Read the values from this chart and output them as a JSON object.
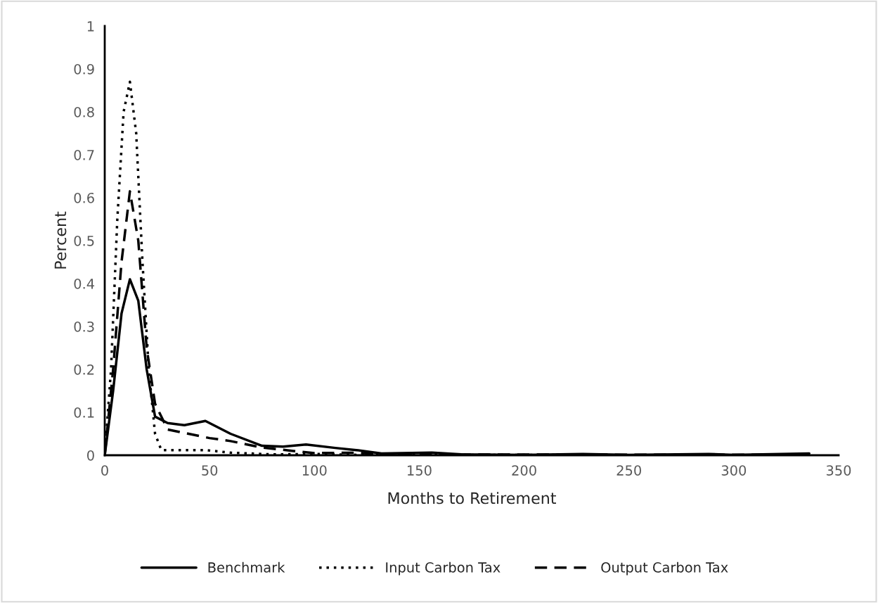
{
  "chart_data": {
    "type": "line",
    "xlabel": "Months to Retirement",
    "ylabel": "Percent",
    "xlim": [
      0,
      350
    ],
    "xticks": [
      0,
      50,
      100,
      150,
      200,
      250,
      300,
      350
    ],
    "ylim": [
      0,
      1
    ],
    "yticks": [
      0,
      0.1,
      0.2,
      0.3,
      0.4,
      0.5,
      0.6,
      0.7,
      0.8,
      0.9,
      1
    ],
    "grid": false,
    "legend": "bottom",
    "marker": "none",
    "series": [
      {
        "name": "Benchmark",
        "color": "#000000",
        "line_style": "solid",
        "x": [
          0,
          4,
          8,
          12,
          16,
          20,
          24,
          30,
          38,
          48,
          60,
          75,
          85,
          96,
          110,
          120,
          132,
          156,
          170,
          200,
          228,
          250,
          288,
          300,
          336
        ],
        "values": [
          0,
          0.15,
          0.33,
          0.41,
          0.36,
          0.2,
          0.09,
          0.075,
          0.07,
          0.08,
          0.05,
          0.022,
          0.02,
          0.025,
          0.017,
          0.012,
          0.004,
          0.006,
          0.002,
          0.001,
          0.003,
          0.001,
          0.003,
          0.001,
          0.004
        ]
      },
      {
        "name": "Input Carbon Tax",
        "color": "#000000",
        "line_style": "dotted",
        "x": [
          0,
          3,
          6,
          9,
          12,
          15,
          18,
          21,
          24,
          27,
          36,
          48,
          60,
          80,
          100,
          120,
          150,
          336
        ],
        "values": [
          0,
          0.2,
          0.55,
          0.8,
          0.87,
          0.75,
          0.45,
          0.2,
          0.05,
          0.012,
          0.012,
          0.012,
          0.006,
          0.002,
          0.003,
          0.001,
          0.001,
          0
        ]
      },
      {
        "name": "Output Carbon Tax",
        "color": "#000000",
        "line_style": "dashed",
        "x": [
          0,
          4,
          8,
          12,
          16,
          20,
          24,
          30,
          40,
          50,
          60,
          75,
          90,
          100,
          120,
          132,
          336
        ],
        "values": [
          0,
          0.2,
          0.45,
          0.615,
          0.5,
          0.25,
          0.12,
          0.06,
          0.05,
          0.04,
          0.033,
          0.018,
          0.01,
          0.005,
          0.006,
          0.002,
          0.001
        ]
      }
    ]
  }
}
